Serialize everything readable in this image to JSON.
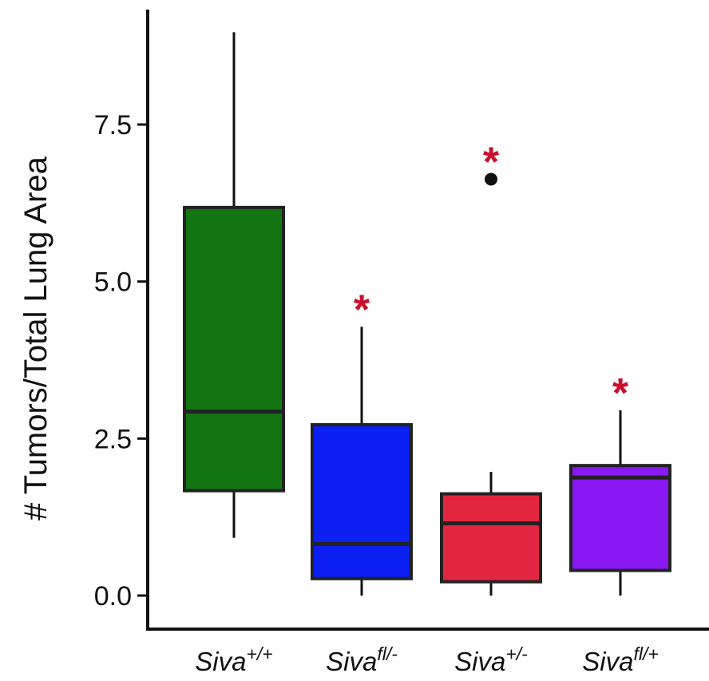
{
  "chart_data": {
    "type": "box",
    "ylabel": "# Tumors/Total Lung Area",
    "ylim": [
      -0.3,
      9.2
    ],
    "yticks": [
      "0.0",
      "2.5",
      "5.0",
      "7.5"
    ],
    "ytick_values": [
      0.0,
      2.5,
      5.0,
      7.5
    ],
    "categories": [
      {
        "base": "Siva",
        "sup": "+/+"
      },
      {
        "base": "Siva",
        "sup": "fl/-"
      },
      {
        "base": "Siva",
        "sup": "+/-"
      },
      {
        "base": "Siva",
        "sup": "fl/+"
      }
    ],
    "boxes": [
      {
        "whisker_low": 0.92,
        "q1": 1.67,
        "median": 2.93,
        "q3": 6.18,
        "whisker_high": 8.97,
        "outliers": [],
        "color": "#137512",
        "significance": ""
      },
      {
        "whisker_low": 0.0,
        "q1": 0.27,
        "median": 0.82,
        "q3": 2.72,
        "whisker_high": 4.28,
        "outliers": [],
        "color": "#0a1ff0",
        "significance": "*"
      },
      {
        "whisker_low": 0.0,
        "q1": 0.22,
        "median": 1.15,
        "q3": 1.62,
        "whisker_high": 1.97,
        "outliers": [
          6.63
        ],
        "color": "#e3263f",
        "significance": "*"
      },
      {
        "whisker_low": 0.0,
        "q1": 0.4,
        "median": 1.88,
        "q3": 2.07,
        "whisker_high": 2.95,
        "outliers": [],
        "color": "#8817f2",
        "significance": "*"
      }
    ],
    "significance_color": "#c8102e",
    "grid": false,
    "legend": "none"
  }
}
